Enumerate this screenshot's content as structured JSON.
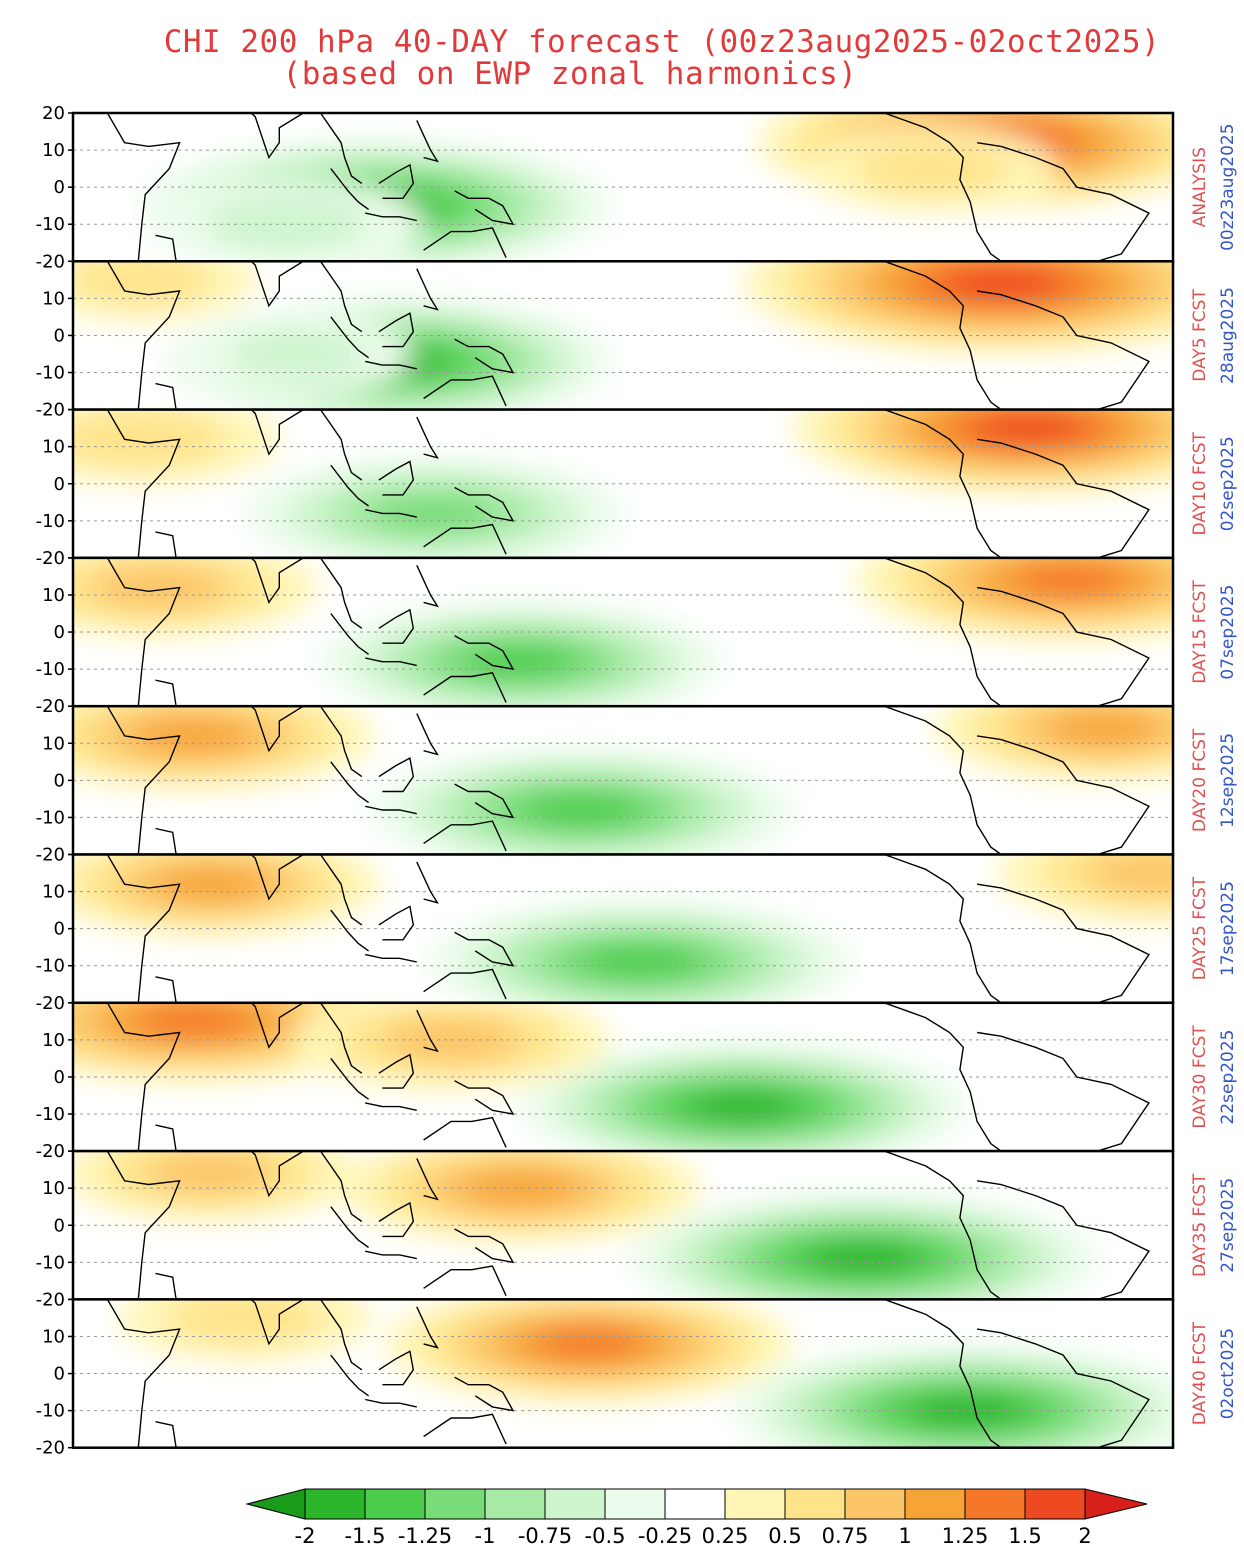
{
  "chart_data": {
    "type": "heatmap",
    "title": "CHI 200 hPa 40-DAY forecast (00z23aug2025-02oct2025)",
    "subtitle": "(based on EWP zonal harmonics)",
    "ylim": [
      -20,
      20
    ],
    "y_ticks": [
      "20",
      "10",
      "0",
      "-10",
      "-20"
    ],
    "grid": true,
    "panels": [
      {
        "label": "ANALYSIS",
        "date": "00z23aug2025",
        "features": [
          {
            "sign": -1,
            "lon": 108,
            "lat": -5,
            "value": -1.6
          },
          {
            "sign": -1,
            "lon": 82,
            "lat": -10,
            "value": -0.7
          },
          {
            "sign": 1,
            "lon": 288,
            "lat": 12,
            "value": 1.6
          },
          {
            "sign": 1,
            "lon": 270,
            "lat": 5,
            "value": 0.6
          }
        ]
      },
      {
        "label": "DAY5 FCST",
        "date": "28aug2025",
        "features": [
          {
            "sign": -1,
            "lon": 112,
            "lat": -7,
            "value": -1.5
          },
          {
            "sign": -1,
            "lon": 85,
            "lat": -5,
            "value": -0.5
          },
          {
            "sign": 1,
            "lon": 290,
            "lat": 14,
            "value": 1.8
          },
          {
            "sign": 1,
            "lon": 40,
            "lat": 15,
            "value": 0.5
          }
        ]
      },
      {
        "label": "DAY10 FCST",
        "date": "02sep2025",
        "features": [
          {
            "sign": -1,
            "lon": 125,
            "lat": -8,
            "value": -1.2
          },
          {
            "sign": 1,
            "lon": 298,
            "lat": 15,
            "value": 1.6
          },
          {
            "sign": 1,
            "lon": 40,
            "lat": 12,
            "value": 0.7
          }
        ]
      },
      {
        "label": "DAY15 FCST",
        "date": "07sep2025",
        "features": [
          {
            "sign": -1,
            "lon": 150,
            "lat": -8,
            "value": -1.3
          },
          {
            "sign": 1,
            "lon": 310,
            "lat": 14,
            "value": 1.4
          },
          {
            "sign": 1,
            "lon": 45,
            "lat": 12,
            "value": 0.9
          }
        ]
      },
      {
        "label": "DAY20 FCST",
        "date": "12sep2025",
        "features": [
          {
            "sign": -1,
            "lon": 168,
            "lat": -8,
            "value": -1.4
          },
          {
            "sign": 1,
            "lon": 55,
            "lat": 12,
            "value": 1.1
          },
          {
            "sign": 1,
            "lon": 320,
            "lat": 14,
            "value": 1.0
          }
        ]
      },
      {
        "label": "DAY25 FCST",
        "date": "17sep2025",
        "features": [
          {
            "sign": -1,
            "lon": 185,
            "lat": -9,
            "value": -1.4
          },
          {
            "sign": 1,
            "lon": 60,
            "lat": 12,
            "value": 1.0
          },
          {
            "sign": 1,
            "lon": 335,
            "lat": 15,
            "value": 0.9
          }
        ]
      },
      {
        "label": "DAY30 FCST",
        "date": "22sep2025",
        "features": [
          {
            "sign": -1,
            "lon": 215,
            "lat": -8,
            "value": -1.5
          },
          {
            "sign": 1,
            "lon": 55,
            "lat": 15,
            "value": 1.4
          },
          {
            "sign": 1,
            "lon": 130,
            "lat": 10,
            "value": 0.9
          }
        ]
      },
      {
        "label": "DAY35 FCST",
        "date": "27sep2025",
        "features": [
          {
            "sign": -1,
            "lon": 250,
            "lat": -9,
            "value": -1.6
          },
          {
            "sign": 1,
            "lon": 150,
            "lat": 10,
            "value": 1.1
          },
          {
            "sign": 1,
            "lon": 60,
            "lat": 14,
            "value": 0.8
          }
        ]
      },
      {
        "label": "DAY40 FCST",
        "date": "02oct2025",
        "features": [
          {
            "sign": -1,
            "lon": 280,
            "lat": -10,
            "value": -1.6
          },
          {
            "sign": 1,
            "lon": 170,
            "lat": 8,
            "value": 1.3
          },
          {
            "sign": 1,
            "lon": 70,
            "lat": 15,
            "value": 0.6
          }
        ]
      }
    ],
    "colorbar": {
      "tick_labels": [
        "-2",
        "-1.5",
        "-1.25",
        "-1",
        "-0.75",
        "-0.5",
        "-0.25",
        "0.25",
        "0.5",
        "0.75",
        "1",
        "1.25",
        "1.5",
        "2"
      ],
      "colors": [
        "#1a9b1a",
        "#2bb52b",
        "#4ccd4c",
        "#78dc78",
        "#a6eaa6",
        "#cdf5cd",
        "#ecfcec",
        "#ffffff",
        "#fff5b4",
        "#ffe38a",
        "#fcc567",
        "#f7a437",
        "#f5782a",
        "#ee4a22",
        "#d8201a"
      ]
    }
  }
}
